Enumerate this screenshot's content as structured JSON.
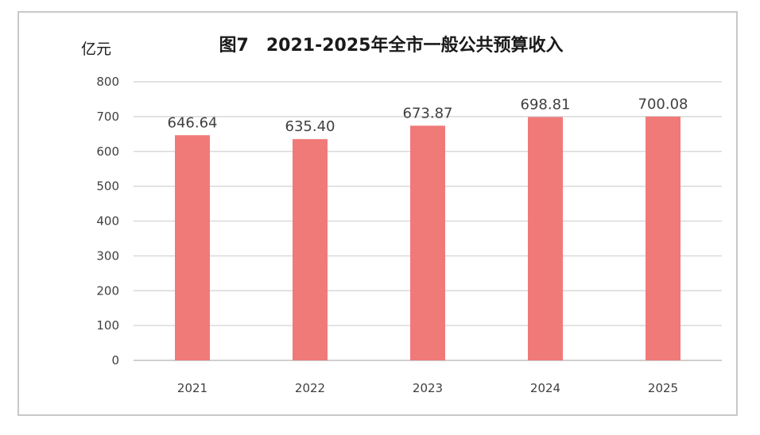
{
  "chart_data": {
    "type": "bar",
    "title": "图7　2021-2025年全市一般公共预算收入",
    "ylabel": "亿元",
    "xlabel": "",
    "categories": [
      "2021",
      "2022",
      "2023",
      "2024",
      "2025"
    ],
    "values": [
      646.64,
      635.4,
      673.87,
      698.81,
      700.08
    ],
    "data_labels": [
      "646.64",
      "635.40",
      "673.87",
      "698.81",
      "700.08"
    ],
    "ylim": [
      0,
      800
    ],
    "yticks": [
      "0",
      "100",
      "200",
      "300",
      "400",
      "500",
      "600",
      "700",
      "800"
    ],
    "grid": true,
    "legend": "none",
    "bar_color": "#f07a78"
  }
}
